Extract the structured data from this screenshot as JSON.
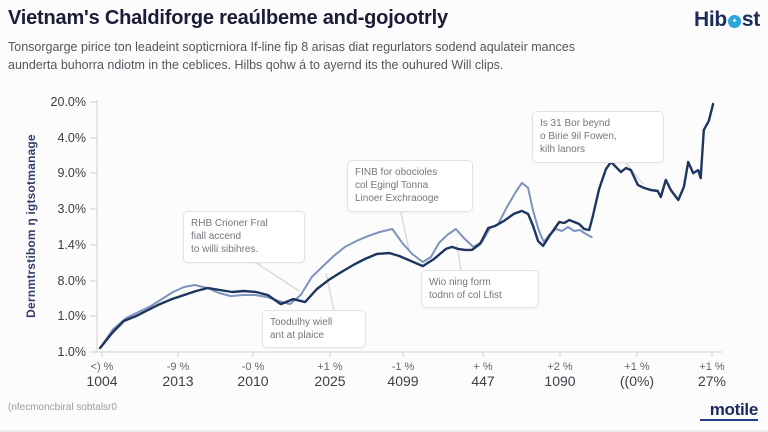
{
  "header": {
    "title": "Vietnam's Chaldiforge reaúlbeme and-gojootrly",
    "subtitle_line1": "Tonsorgarge pirice ton leadeint sopticrniora If-line fip 8 arisas diat regurlators sodend aqulateir mances",
    "subtitle_line2": "aunderta buhorra ndiotm in the ceblices. Hilbs qohw á to ayernd its the ouhured Will clips.",
    "logo_prefix": "Hib",
    "logo_suffix": "st"
  },
  "chart_data": {
    "type": "line",
    "title": "",
    "xlabel": "",
    "ylabel": "Dernmtrstibom ŋ igtsotmanage",
    "grid": false,
    "legend_position": "none",
    "y_ticks": [
      "20.0%",
      "4.0%",
      "9.0%",
      "3.0%",
      "1.4%",
      "8.0%",
      "1.0%",
      "1.0%"
    ],
    "x_ticks": [
      {
        "pct": "<) %",
        "year": "1004"
      },
      {
        "pct": "-9 %",
        "year": "2013"
      },
      {
        "pct": "-0 %",
        "year": "2010"
      },
      {
        "pct": "+1 %",
        "year": "2025"
      },
      {
        "pct": "-1 %",
        "year": "4099"
      },
      {
        "pct": "+ %",
        "year": "447"
      },
      {
        "pct": "+2 %",
        "year": "1090"
      },
      {
        "pct": "+1 %",
        "year": "((0%)"
      },
      {
        "pct": "+1 %",
        "year": "27%"
      }
    ],
    "series": [
      {
        "name": "light-steel",
        "color": "#7d93bd",
        "width": 2,
        "points": [
          [
            0.5,
            1.6
          ],
          [
            2.6,
            9.1
          ],
          [
            4.7,
            13.5
          ],
          [
            6.7,
            15.9
          ],
          [
            8.7,
            18.3
          ],
          [
            10.4,
            21.0
          ],
          [
            12.2,
            23.8
          ],
          [
            14.0,
            25.8
          ],
          [
            15.7,
            26.6
          ],
          [
            17.7,
            25.4
          ],
          [
            19.6,
            23.4
          ],
          [
            21.5,
            22.2
          ],
          [
            23.4,
            22.6
          ],
          [
            25.4,
            22.6
          ],
          [
            27.3,
            21.8
          ],
          [
            29.2,
            20.2
          ],
          [
            31.0,
            19.0
          ],
          [
            32.7,
            22.6
          ],
          [
            34.5,
            29.8
          ],
          [
            36.3,
            34.1
          ],
          [
            38.0,
            38.1
          ],
          [
            39.8,
            41.7
          ],
          [
            41.6,
            44.0
          ],
          [
            43.5,
            46.0
          ],
          [
            45.4,
            47.6
          ],
          [
            47.4,
            48.8
          ],
          [
            49.0,
            43.3
          ],
          [
            50.6,
            38.9
          ],
          [
            52.3,
            35.7
          ],
          [
            53.6,
            37.7
          ],
          [
            54.9,
            43.3
          ],
          [
            56.2,
            46.4
          ],
          [
            57.6,
            48.8
          ],
          [
            58.9,
            45.2
          ],
          [
            60.4,
            41.7
          ],
          [
            61.8,
            43.7
          ],
          [
            63.1,
            49.2
          ],
          [
            64.4,
            50.8
          ],
          [
            65.8,
            57.5
          ],
          [
            67.3,
            63.9
          ],
          [
            68.2,
            67.1
          ],
          [
            69.2,
            65.1
          ],
          [
            70.0,
            56.0
          ],
          [
            70.9,
            48.4
          ],
          [
            71.7,
            43.7
          ],
          [
            72.7,
            46.8
          ],
          [
            73.7,
            48.8
          ],
          [
            74.6,
            48.0
          ],
          [
            75.6,
            49.6
          ],
          [
            76.6,
            48.0
          ],
          [
            77.5,
            48.4
          ],
          [
            78.5,
            46.8
          ],
          [
            79.4,
            45.6
          ]
        ]
      },
      {
        "name": "dark-navy",
        "color": "#1e3560",
        "width": 2.4,
        "points": [
          [
            0.5,
            1.6
          ],
          [
            2.4,
            7.5
          ],
          [
            4.3,
            12.3
          ],
          [
            6.3,
            14.3
          ],
          [
            8.2,
            16.7
          ],
          [
            10.1,
            19.0
          ],
          [
            12.0,
            21.0
          ],
          [
            14.0,
            22.6
          ],
          [
            15.9,
            24.2
          ],
          [
            17.8,
            25.4
          ],
          [
            19.7,
            24.6
          ],
          [
            21.7,
            23.8
          ],
          [
            23.6,
            24.2
          ],
          [
            25.5,
            23.8
          ],
          [
            27.4,
            22.6
          ],
          [
            29.5,
            19.0
          ],
          [
            31.5,
            21.0
          ],
          [
            33.4,
            19.8
          ],
          [
            35.3,
            25.0
          ],
          [
            37.2,
            28.6
          ],
          [
            39.2,
            31.7
          ],
          [
            41.1,
            34.5
          ],
          [
            43.0,
            36.9
          ],
          [
            44.9,
            38.9
          ],
          [
            46.9,
            39.3
          ],
          [
            48.5,
            38.1
          ],
          [
            50.4,
            36.1
          ],
          [
            52.3,
            34.1
          ],
          [
            54.1,
            36.9
          ],
          [
            56.0,
            40.9
          ],
          [
            57.0,
            41.7
          ],
          [
            57.9,
            40.9
          ],
          [
            59.1,
            40.5
          ],
          [
            60.2,
            40.5
          ],
          [
            61.5,
            42.9
          ],
          [
            62.8,
            49.2
          ],
          [
            63.9,
            50.0
          ],
          [
            65.3,
            52.0
          ],
          [
            66.9,
            54.8
          ],
          [
            68.2,
            56.0
          ],
          [
            69.2,
            54.8
          ],
          [
            70.0,
            50.0
          ],
          [
            70.8,
            44.0
          ],
          [
            71.6,
            42.1
          ],
          [
            72.6,
            46.0
          ],
          [
            73.4,
            48.8
          ],
          [
            74.2,
            51.6
          ],
          [
            75.0,
            51.2
          ],
          [
            75.8,
            52.4
          ],
          [
            76.6,
            51.6
          ],
          [
            77.4,
            50.8
          ],
          [
            78.2,
            48.8
          ],
          [
            79.0,
            48.4
          ],
          [
            79.6,
            54.0
          ],
          [
            80.6,
            64.7
          ],
          [
            81.7,
            72.6
          ],
          [
            82.5,
            75.4
          ],
          [
            83.3,
            73.4
          ],
          [
            84.1,
            71.4
          ],
          [
            84.9,
            73.0
          ],
          [
            85.7,
            72.2
          ],
          [
            86.8,
            66.3
          ],
          [
            87.8,
            65.1
          ],
          [
            88.9,
            64.3
          ],
          [
            90.0,
            63.9
          ],
          [
            90.5,
            61.5
          ],
          [
            91.3,
            68.3
          ],
          [
            92.1,
            64.3
          ],
          [
            93.3,
            60.3
          ],
          [
            94.2,
            65.5
          ],
          [
            94.9,
            75.4
          ],
          [
            95.7,
            71.0
          ],
          [
            96.5,
            72.2
          ],
          [
            96.9,
            69.0
          ],
          [
            97.4,
            88.1
          ],
          [
            98.2,
            91.7
          ],
          [
            98.9,
            98.4
          ]
        ]
      }
    ],
    "annotations": [
      {
        "lines": [
          "RHB Crioner Fral",
          "fiall accend",
          "to willi sibihres."
        ]
      },
      {
        "lines": [
          "FINB for obocioles",
          "col Egingl Tonna",
          "Linoer Exchraooge"
        ]
      },
      {
        "lines": [
          "Is 31 Bor beynd",
          "o Birie 9il Fowen,",
          "kilh lanors"
        ]
      },
      {
        "lines": [
          "Wio ning form",
          "todnn of col Lfist"
        ]
      },
      {
        "lines": [
          "Toodulhy wiell",
          "ant at plaice"
        ]
      }
    ]
  },
  "footer": {
    "source": "(nfecmoncbiral sobtalsr0",
    "brand": "motile"
  },
  "colors": {
    "accent_blue": "#28a6dc",
    "navy": "#1d2b57",
    "line_dark": "#1e3560",
    "line_light": "#7d93bd",
    "axis_gray": "#cfcfcf"
  }
}
